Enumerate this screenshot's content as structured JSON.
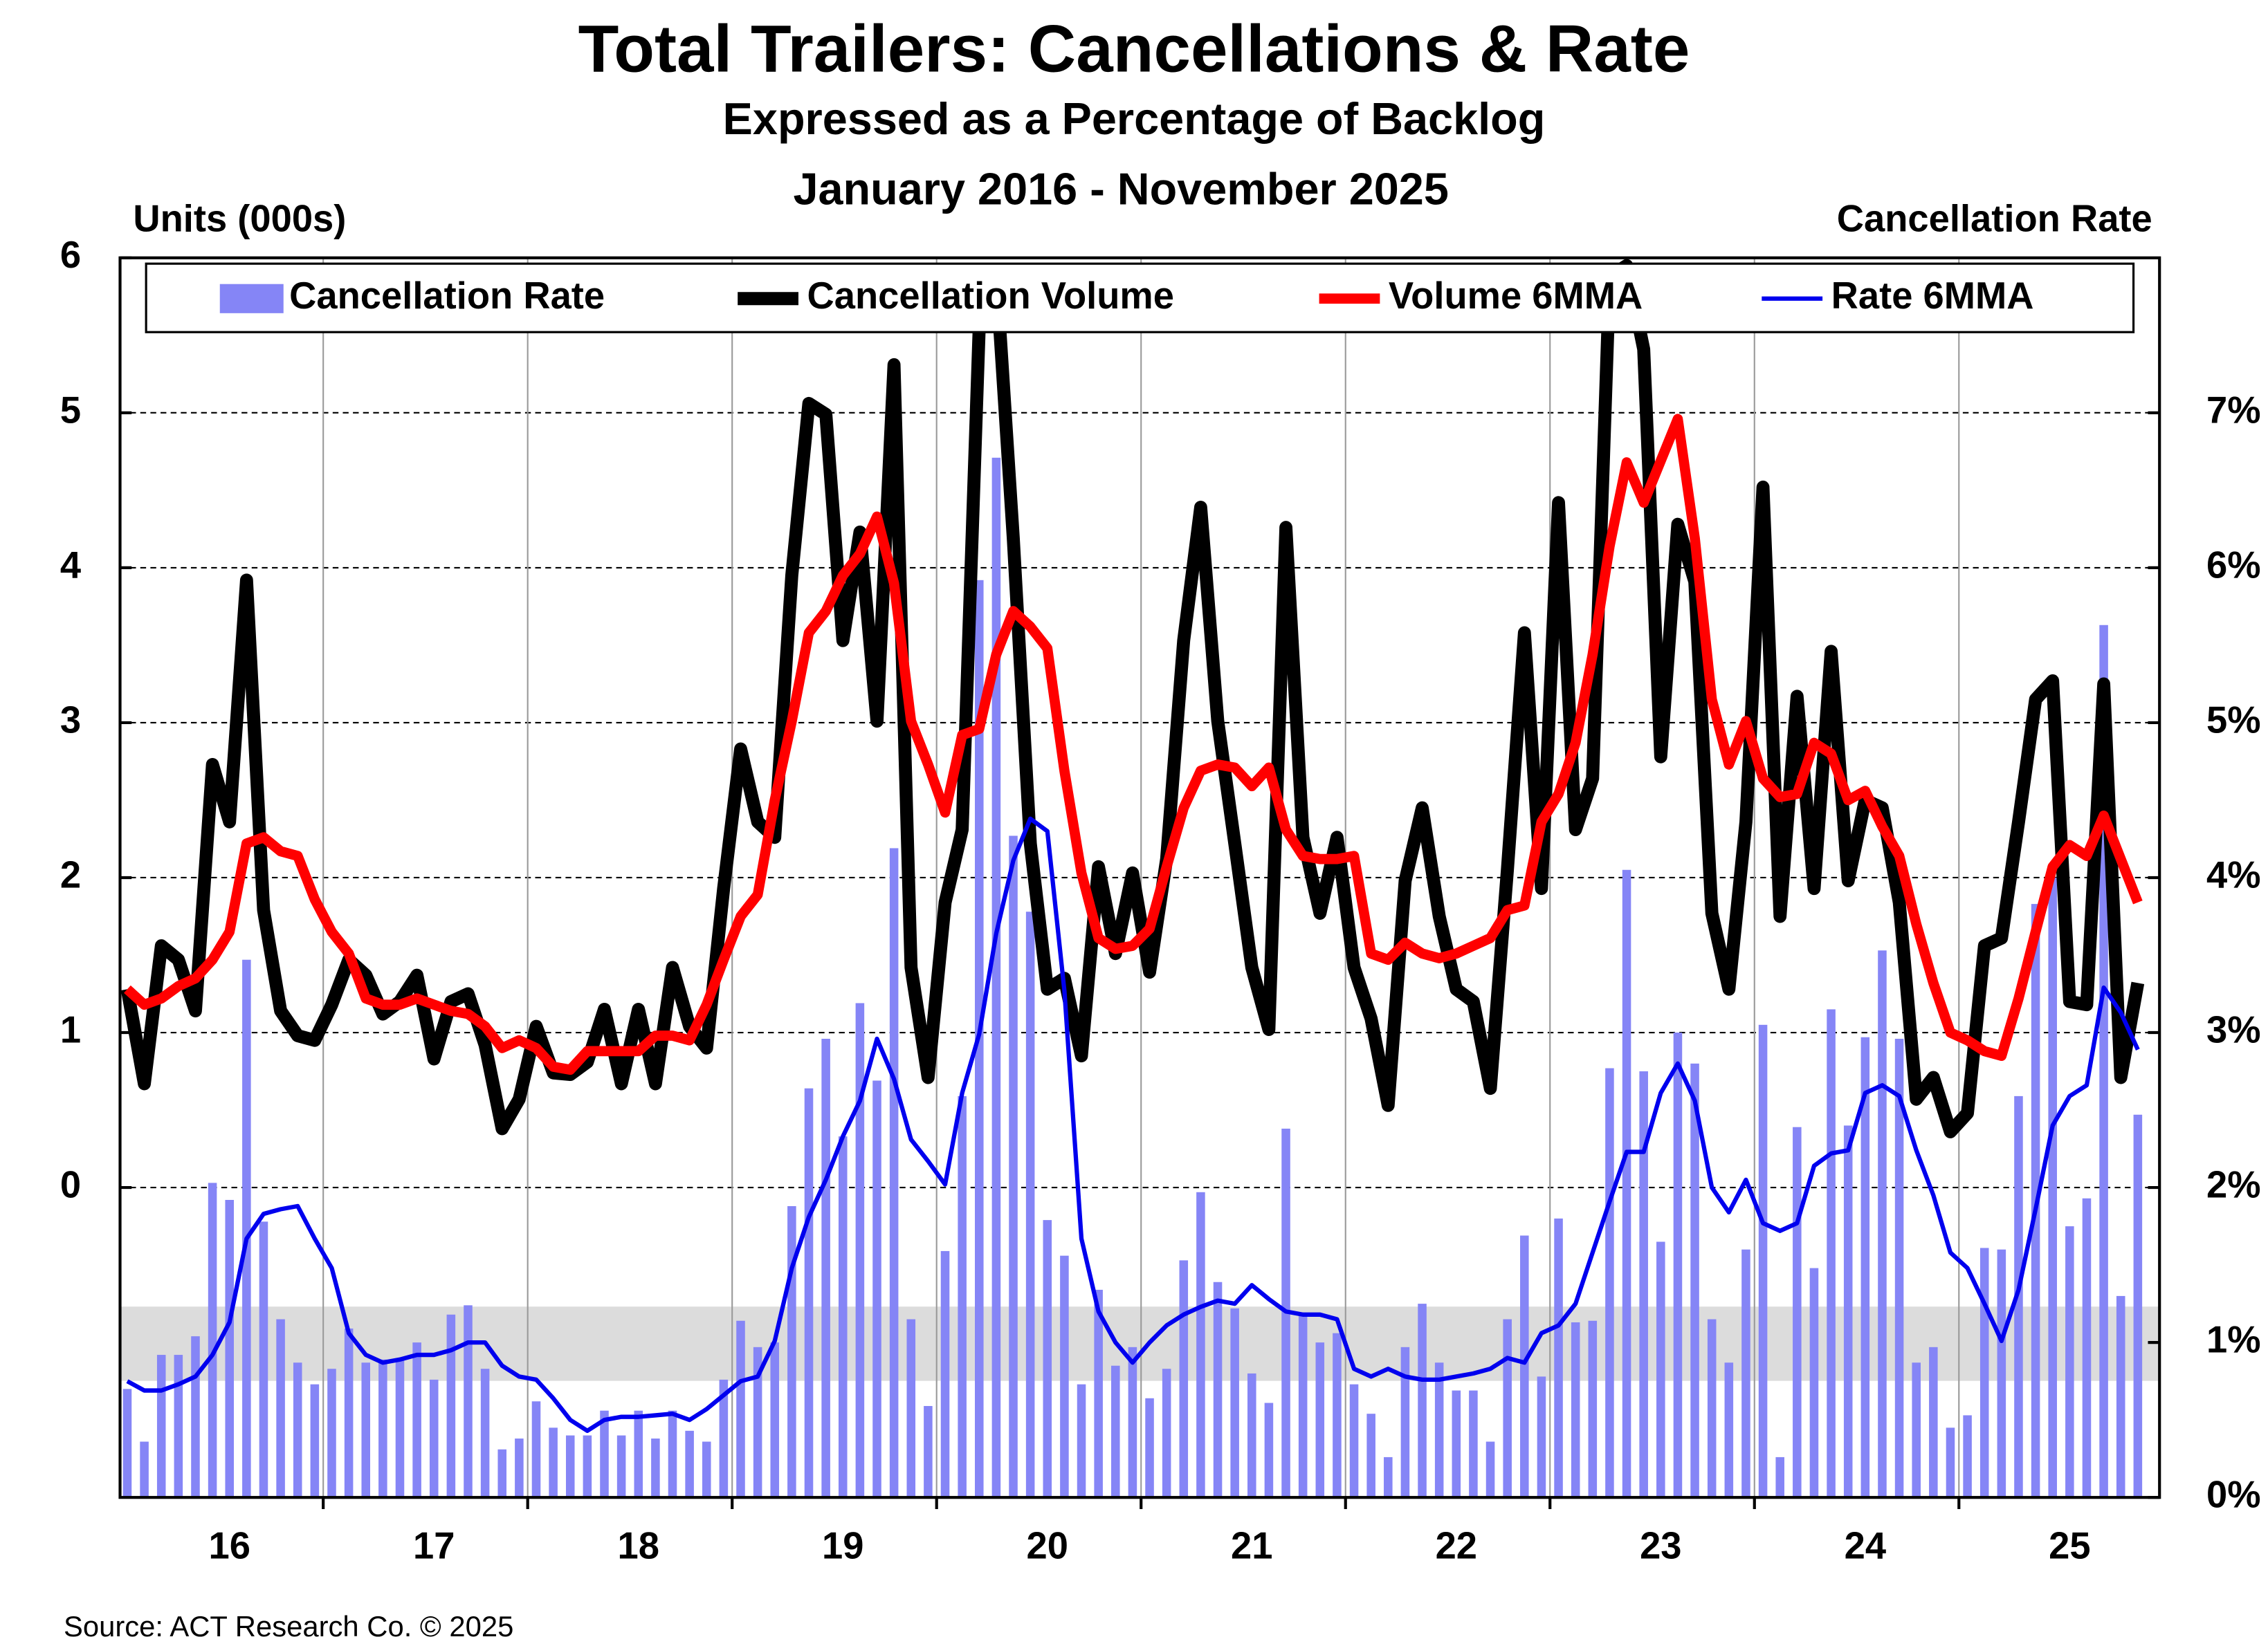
{
  "chart_data": {
    "type": "combo",
    "title": "Total Trailers: Cancellations & Rate",
    "subtitle": "Expressed as a Percentage of Backlog",
    "subtitle2": "January 2016 - November 2025",
    "y_label": "Units (000s)",
    "y2_label": "Cancellation Rate",
    "source": "Source: ACT Research Co. © 2025",
    "categories": [
      null,
      null,
      null,
      null,
      null,
      null,
      "16",
      null,
      null,
      null,
      null,
      null,
      null,
      null,
      null,
      null,
      null,
      null,
      "17",
      null,
      null,
      null,
      null,
      null,
      null,
      null,
      null,
      null,
      null,
      null,
      "18",
      null,
      null,
      null,
      null,
      null,
      null,
      null,
      null,
      null,
      null,
      null,
      "19",
      null,
      null,
      null,
      null,
      null,
      null,
      null,
      null,
      null,
      null,
      null,
      "20",
      null,
      null,
      null,
      null,
      null,
      null,
      null,
      null,
      null,
      null,
      null,
      "21",
      null,
      null,
      null,
      null,
      null,
      null,
      null,
      null,
      null,
      null,
      null,
      "22",
      null,
      null,
      null,
      null,
      null,
      null,
      null,
      null,
      null,
      null,
      null,
      "23",
      null,
      null,
      null,
      null,
      null,
      null,
      null,
      null,
      null,
      null,
      null,
      "24",
      null,
      null,
      null,
      null,
      null,
      null,
      null,
      null,
      null,
      null,
      null,
      "25",
      null,
      null,
      null,
      null
    ],
    "ylim": [
      -2,
      6
    ],
    "yticks": [
      0,
      1,
      2,
      3,
      4,
      5,
      6
    ],
    "y2lim": [
      0,
      8
    ],
    "y2ticks": [
      {
        "value": 0,
        "label": "0%"
      },
      {
        "value": 1,
        "label": "1%"
      },
      {
        "value": 2,
        "label": "2%"
      },
      {
        "value": 3,
        "label": "3%"
      },
      {
        "value": 4,
        "label": "4%"
      },
      {
        "value": 5,
        "label": "5%"
      },
      {
        "value": 6,
        "label": "6%"
      },
      {
        "value": 7,
        "label": "7%"
      }
    ],
    "grid": true,
    "series": [
      {
        "name": "Cancellation Rate",
        "type": "bar",
        "axis": "y2",
        "color": "#8585f6",
        "values": [
          0.7,
          0.36,
          0.92,
          0.92,
          1.04,
          2.03,
          1.92,
          3.47,
          1.78,
          1.15,
          0.87,
          0.73,
          0.83,
          1.09,
          0.87,
          0.89,
          0.9,
          1.0,
          0.76,
          1.18,
          1.24,
          0.83,
          0.31,
          0.38,
          0.62,
          0.45,
          0.4,
          0.4,
          0.56,
          0.4,
          0.56,
          0.38,
          0.56,
          0.43,
          0.36,
          0.76,
          1.14,
          0.97,
          1.0,
          1.88,
          2.64,
          2.96,
          2.33,
          3.19,
          2.69,
          4.19,
          1.15,
          0.59,
          1.59,
          2.59,
          5.92,
          6.71,
          4.27,
          3.78,
          1.79,
          1.56,
          0.73,
          1.34,
          0.85,
          0.97,
          0.64,
          0.83,
          1.53,
          1.97,
          1.39,
          1.22,
          0.8,
          0.61,
          2.38,
          1.18,
          1.0,
          1.06,
          0.73,
          0.54,
          0.26,
          0.97,
          1.25,
          0.87,
          0.69,
          0.69,
          0.36,
          1.15,
          1.69,
          0.78,
          1.8,
          1.13,
          1.14,
          2.77,
          4.05,
          2.75,
          1.65,
          3.0,
          2.8,
          1.15,
          0.87,
          1.6,
          3.05,
          0.26,
          2.39,
          1.48,
          3.15,
          2.4,
          2.97,
          3.53,
          2.96,
          0.87,
          0.97,
          0.45,
          0.53,
          1.61,
          1.6,
          2.59,
          3.83,
          4.0,
          1.75,
          1.93,
          5.63,
          1.3,
          2.47
        ]
      },
      {
        "name": "Cancellation Volume",
        "type": "line",
        "color": "#000000",
        "width": 9,
        "values": [
          1.28,
          0.67,
          1.56,
          1.47,
          1.14,
          2.73,
          2.36,
          3.92,
          1.79,
          1.14,
          0.98,
          0.95,
          1.18,
          1.47,
          1.37,
          1.12,
          1.2,
          1.37,
          0.83,
          1.2,
          1.25,
          0.92,
          0.38,
          0.57,
          1.04,
          0.74,
          0.73,
          0.81,
          1.15,
          0.67,
          1.15,
          0.67,
          1.42,
          1.04,
          0.9,
          1.93,
          2.83,
          2.36,
          2.26,
          3.95,
          5.06,
          4.99,
          3.53,
          4.23,
          3.01,
          5.31,
          1.42,
          0.71,
          1.84,
          2.31,
          5.55,
          5.9,
          4.19,
          2.22,
          1.28,
          1.35,
          0.85,
          2.07,
          1.51,
          2.03,
          1.39,
          2.12,
          3.53,
          4.39,
          3.01,
          2.22,
          1.42,
          1.02,
          4.26,
          2.26,
          1.77,
          2.26,
          1.42,
          1.09,
          0.53,
          1.98,
          2.45,
          1.75,
          1.28,
          1.2,
          0.64,
          2.05,
          3.58,
          1.93,
          4.42,
          2.31,
          2.64,
          5.88,
          5.95,
          5.41,
          2.78,
          4.28,
          3.91,
          1.77,
          1.28,
          2.36,
          4.52,
          1.75,
          3.17,
          1.93,
          3.46,
          1.98,
          2.5,
          2.45,
          1.84,
          0.57,
          0.71,
          0.36,
          0.48,
          1.56,
          1.61,
          2.36,
          3.15,
          3.27,
          1.2,
          1.18,
          3.25,
          0.71,
          1.32
        ]
      },
      {
        "name": "Volume 6MMA",
        "type": "line",
        "color": "#ff0000",
        "width": 7,
        "values": [
          1.28,
          1.18,
          1.22,
          1.3,
          1.35,
          1.47,
          1.65,
          2.22,
          2.26,
          2.17,
          2.14,
          1.86,
          1.65,
          1.51,
          1.22,
          1.18,
          1.18,
          1.22,
          1.18,
          1.14,
          1.12,
          1.04,
          0.9,
          0.95,
          0.9,
          0.78,
          0.76,
          0.88,
          0.88,
          0.88,
          0.88,
          0.98,
          0.98,
          0.95,
          1.18,
          1.47,
          1.75,
          1.89,
          2.5,
          3.01,
          3.58,
          3.72,
          3.95,
          4.09,
          4.33,
          3.9,
          3.01,
          2.73,
          2.42,
          2.92,
          2.96,
          3.44,
          3.72,
          3.62,
          3.48,
          2.69,
          2.03,
          1.61,
          1.54,
          1.56,
          1.67,
          2.07,
          2.45,
          2.69,
          2.73,
          2.71,
          2.59,
          2.71,
          2.31,
          2.14,
          2.12,
          2.12,
          2.14,
          1.51,
          1.47,
          1.58,
          1.51,
          1.48,
          1.51,
          1.56,
          1.61,
          1.79,
          1.82,
          2.36,
          2.54,
          2.87,
          3.44,
          4.14,
          4.68,
          4.42,
          4.69,
          4.96,
          4.19,
          3.15,
          2.73,
          3.01,
          2.64,
          2.52,
          2.54,
          2.87,
          2.8,
          2.5,
          2.56,
          2.33,
          2.14,
          1.7,
          1.32,
          1.0,
          0.95,
          0.88,
          0.85,
          1.22,
          1.65,
          2.07,
          2.21,
          2.14,
          2.4,
          2.12,
          1.84
        ]
      },
      {
        "name": "Rate 6MMA",
        "type": "line",
        "axis": "y2",
        "color": "#0000ee",
        "width": 3,
        "values": [
          0.75,
          0.69,
          0.69,
          0.73,
          0.78,
          0.92,
          1.13,
          1.67,
          1.83,
          1.86,
          1.88,
          1.67,
          1.48,
          1.06,
          0.92,
          0.87,
          0.89,
          0.92,
          0.92,
          0.95,
          1.0,
          1.0,
          0.85,
          0.78,
          0.76,
          0.64,
          0.5,
          0.43,
          0.5,
          0.52,
          0.52,
          0.53,
          0.54,
          0.5,
          0.57,
          0.66,
          0.75,
          0.78,
          1.01,
          1.48,
          1.81,
          2.05,
          2.33,
          2.56,
          2.96,
          2.7,
          2.31,
          2.17,
          2.02,
          2.61,
          2.99,
          3.64,
          4.11,
          4.38,
          4.3,
          3.27,
          1.67,
          1.2,
          1.0,
          0.87,
          1.0,
          1.11,
          1.18,
          1.23,
          1.27,
          1.25,
          1.37,
          1.28,
          1.2,
          1.18,
          1.18,
          1.15,
          0.83,
          0.78,
          0.83,
          0.78,
          0.76,
          0.76,
          0.78,
          0.8,
          0.83,
          0.9,
          0.87,
          1.06,
          1.11,
          1.25,
          1.58,
          1.91,
          2.23,
          2.23,
          2.61,
          2.8,
          2.56,
          2.0,
          1.84,
          2.05,
          1.77,
          1.72,
          1.77,
          2.14,
          2.22,
          2.24,
          2.61,
          2.66,
          2.59,
          2.24,
          1.95,
          1.58,
          1.48,
          1.25,
          1.01,
          1.34,
          1.86,
          2.4,
          2.59,
          2.66,
          3.29,
          3.13,
          2.89
        ]
      }
    ]
  }
}
